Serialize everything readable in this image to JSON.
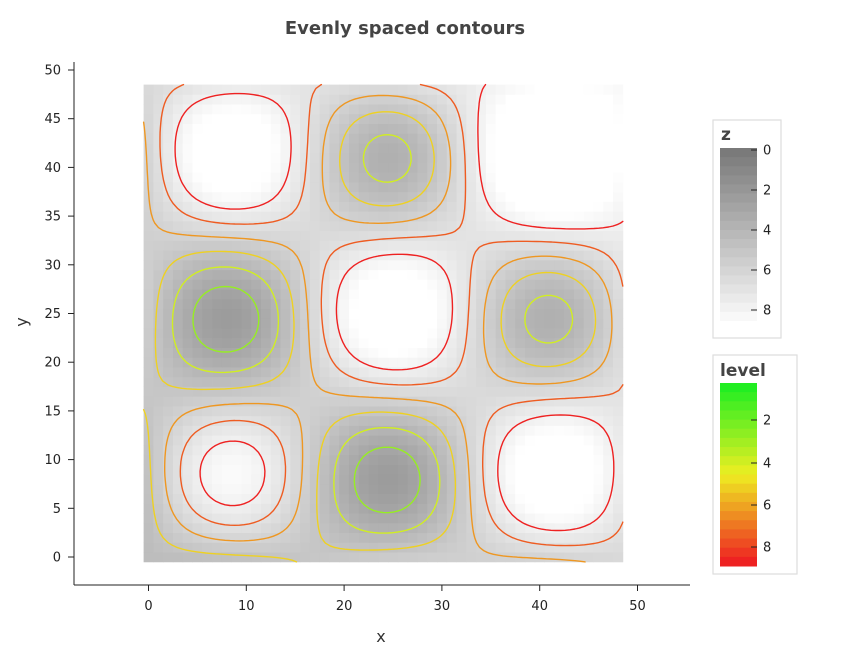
{
  "chart_data": {
    "type": "heatmap",
    "title": "Evenly spaced contours",
    "xlabel": "x",
    "ylabel": "y",
    "xlim": [
      -8,
      56
    ],
    "ylim": [
      -3,
      51
    ],
    "xticks": [
      0,
      10,
      20,
      30,
      40,
      50
    ],
    "yticks": [
      0,
      5,
      10,
      15,
      20,
      25,
      30,
      35,
      40,
      45,
      50
    ],
    "grid": {
      "x_range": [
        -0.5,
        48.5
      ],
      "y_range": [
        -0.5,
        48.5
      ],
      "cells": 49,
      "function": "z(x,y) = 4.5 + 3.5*sin(2*pi*x/33)*sin(2*pi*y/33) + 0.04*x + 0.04*y (approximate field)"
    },
    "z_range": [
      0,
      9
    ],
    "contour_levels": [
      1,
      2,
      3,
      4,
      5,
      6,
      7,
      8
    ],
    "colorscales": {
      "z": [
        "#7a7a7a",
        "#ffffff"
      ],
      "level": [
        "#22ee22",
        "#eeee22",
        "#ee2222"
      ]
    },
    "legends": [
      {
        "title": "z",
        "ticks": [
          "0",
          "2",
          "4",
          "6",
          "8"
        ],
        "placement": "right"
      },
      {
        "title": "level",
        "ticks": [
          "2",
          "4",
          "6",
          "8"
        ],
        "placement": "right"
      }
    ]
  }
}
